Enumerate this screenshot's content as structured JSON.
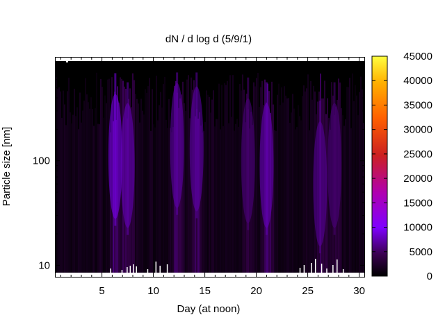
{
  "chart_data": {
    "type": "heatmap",
    "title": "dN / d log d (5/9/1)",
    "xlabel": "Day (at noon)",
    "ylabel": "Particle size [nm]",
    "x_range": [
      0.5,
      30.5
    ],
    "x_ticks": [
      5,
      10,
      15,
      20,
      25,
      30
    ],
    "y_scale": "log",
    "y_range_nm": [
      8.5,
      900
    ],
    "y_tick_labels": [
      {
        "value": 10,
        "label": "10"
      },
      {
        "value": 100,
        "label": "100"
      }
    ],
    "colorbar": {
      "range": [
        0,
        45000
      ],
      "ticks": [
        0,
        5000,
        10000,
        15000,
        20000,
        25000,
        30000,
        35000,
        40000,
        45000
      ],
      "palette": [
        "#000000",
        "#3a0050",
        "#7f00ff",
        "#b000b0",
        "#cc2020",
        "#ff6000",
        "#ffb000",
        "#ffff40"
      ]
    },
    "approx_peak_intensity": [
      {
        "day": 6.3,
        "size_nm": 110,
        "value": 9500
      },
      {
        "day": 7.5,
        "size_nm": 90,
        "value": 8000
      },
      {
        "day": 12.3,
        "size_nm": 140,
        "value": 7500
      },
      {
        "day": 14.2,
        "size_nm": 130,
        "value": 7500
      },
      {
        "day": 19.2,
        "size_nm": 100,
        "value": 6000
      },
      {
        "day": 21.0,
        "size_nm": 90,
        "value": 8000
      },
      {
        "day": 26.2,
        "size_nm": 60,
        "value": 7000
      },
      {
        "day": 27.6,
        "size_nm": 90,
        "value": 6000
      }
    ]
  }
}
